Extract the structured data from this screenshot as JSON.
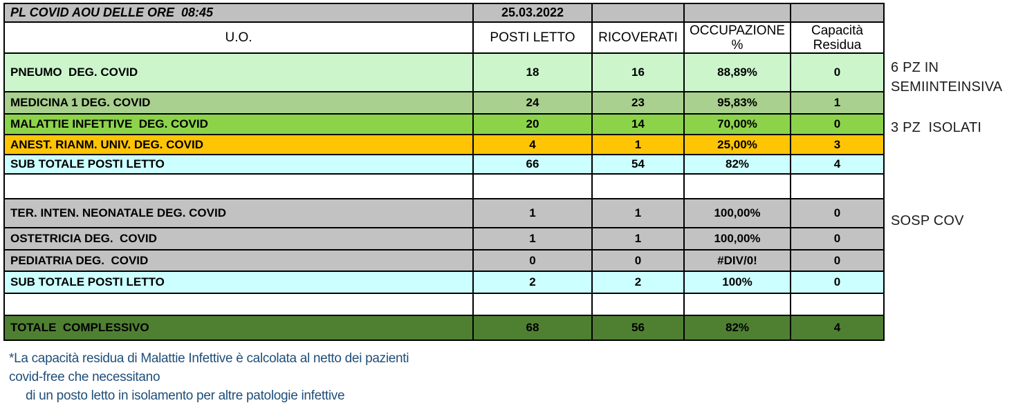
{
  "header": {
    "title": "PL COVID AOU DELLE ORE  08:45",
    "date": "25.03.2022"
  },
  "columns": {
    "uo": "U.O.",
    "posti_letto": "POSTI LETTO",
    "ricoverati": "RICOVERATI",
    "occupazione": "OCCUPAZIONE\n%",
    "capacita": "Capacità\nResidua"
  },
  "rows": [
    {
      "label": "PNEUMO  DEG. COVID",
      "posti_letto": "18",
      "ricoverati": "16",
      "occupazione": "88,89%",
      "capacita_residua": "0"
    },
    {
      "label": "MEDICINA 1 DEG. COVID",
      "posti_letto": "24",
      "ricoverati": "23",
      "occupazione": "95,83%",
      "capacita_residua": "1"
    },
    {
      "label": "MALATTIE INFETTIVE  DEG. COVID",
      "posti_letto": "20",
      "ricoverati": "14",
      "occupazione": "70,00%",
      "capacita_residua": "0"
    },
    {
      "label": "ANEST. RIANM. UNIV. DEG. COVID",
      "posti_letto": "4",
      "ricoverati": "1",
      "occupazione": "25,00%",
      "capacita_residua": "3"
    },
    {
      "label": "SUB TOTALE POSTI LETTO",
      "posti_letto": "66",
      "ricoverati": "54",
      "occupazione": "82%",
      "capacita_residua": "4"
    },
    {
      "label": "TER. INTEN. NEONATALE DEG. COVID",
      "posti_letto": "1",
      "ricoverati": "1",
      "occupazione": "100,00%",
      "capacita_residua": "0"
    },
    {
      "label": "OSTETRICIA DEG.  COVID",
      "posti_letto": "1",
      "ricoverati": "1",
      "occupazione": "100,00%",
      "capacita_residua": "0"
    },
    {
      "label": "PEDIATRIA DEG.  COVID",
      "posti_letto": "0",
      "ricoverati": "0",
      "occupazione": "#DIV/0!",
      "capacita_residua": "0"
    },
    {
      "label": "SUB TOTALE POSTI LETTO",
      "posti_letto": "2",
      "ricoverati": "2",
      "occupazione": "100%",
      "capacita_residua": "0"
    },
    {
      "label": "TOTALE  COMPLESSIVO",
      "posti_letto": "68",
      "ricoverati": "56",
      "occupazione": "82%",
      "capacita_residua": "4"
    }
  ],
  "annotations": {
    "semintensiva": "6 PZ IN SEMIINTEINSIVA",
    "isolati": "3 PZ  ISOLATI",
    "sosp_cov": "SOSP COV"
  },
  "footnote": {
    "line1": "*La capacità residua di Malattie Infettive è calcolata al netto dei pazienti",
    "line2": "covid-free che necessitano",
    "line3": "di un posto letto in isolamento per altre patologie infettive"
  },
  "colors": {
    "header_gray": "#c0c0c0",
    "row_gray": "#c2c2c2",
    "pneumo_light_green": "#ccf5cc",
    "medicina_sage_green": "#a9d08e",
    "malattie_green": "#8cd34a",
    "anest_orange": "#ffc403",
    "subtotal_cyan": "#ccffff",
    "totale_dark_green": "#4f8032",
    "footnote_blue": "#1f4e79",
    "border_black": "#000000"
  }
}
